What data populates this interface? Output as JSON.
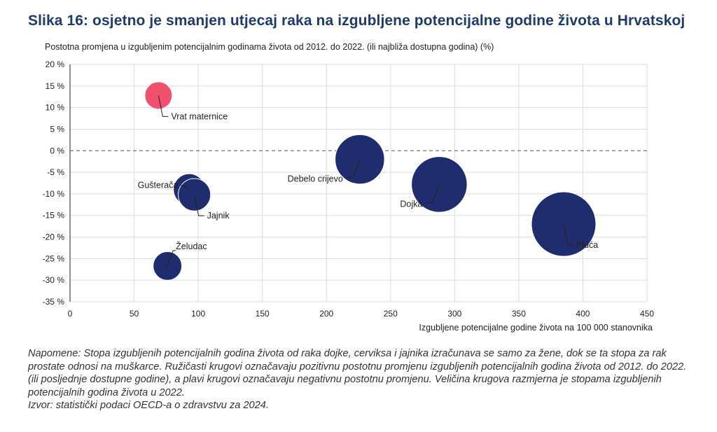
{
  "header": {
    "title": "Slika 16: osjetno je smanjen utjecaj raka na izgubljene potencijalne godine života u Hrvatskoj",
    "subtitle": "Postotna promjena u izgubljenim potencijalnim godinama života od 2012. do 2022. (ili najbliža dostupna godina) (%)"
  },
  "chart_data": {
    "type": "scatter",
    "subtype": "bubble",
    "xlabel": "Izgubljene potencijalne godine života na 100 000 stanovnika",
    "ylabel": "Postotna promjena u izgubljenim potencijalnim godinama života od 2012. do 2022. (ili najbliža dostupna godina) (%)",
    "xlim": [
      0,
      450
    ],
    "ylim": [
      -35,
      20
    ],
    "x_ticks": [
      0,
      50,
      100,
      150,
      200,
      250,
      300,
      350,
      400,
      450
    ],
    "y_ticks": [
      20,
      15,
      10,
      5,
      0,
      -5,
      -10,
      -15,
      -20,
      -25,
      -30,
      -35
    ],
    "x_tick_labels": [
      "0",
      "50",
      "100",
      "150",
      "200",
      "250",
      "300",
      "350",
      "400",
      "450"
    ],
    "y_tick_labels": [
      "20 %",
      "15 %",
      "10 %",
      "5 %",
      "0 %",
      "-5 %",
      "-10 %",
      "-15 %",
      "-20 %",
      "-25 %",
      "-30 %",
      "-35 %"
    ],
    "grid": "vertical and horizontal",
    "reference_line_y": 0,
    "colors": {
      "positive": "#f0506e",
      "negative": "#1f2d6e"
    },
    "points": [
      {
        "label": "Vrat maternice",
        "x": 69,
        "y": 12.8,
        "size": 69,
        "sign": "positive",
        "label_pos": "below-right"
      },
      {
        "label": "Gušterača",
        "x": 93,
        "y": -9,
        "size": 93,
        "sign": "negative",
        "label_pos": "left"
      },
      {
        "label": "Jajnik",
        "x": 97,
        "y": -10.2,
        "size": 97,
        "sign": "negative",
        "label_pos": "below-right"
      },
      {
        "label": "Želudac",
        "x": 76,
        "y": -26.7,
        "size": 76,
        "sign": "negative",
        "label_pos": "above-right"
      },
      {
        "label": "Debelo crijevo",
        "x": 226,
        "y": -2,
        "size": 226,
        "sign": "negative",
        "label_pos": "below-left"
      },
      {
        "label": "Dojka",
        "x": 288,
        "y": -7.8,
        "size": 288,
        "sign": "negative",
        "label_pos": "below-left"
      },
      {
        "label": "Pluća",
        "x": 385,
        "y": -17,
        "size": 385,
        "sign": "negative",
        "label_pos": "below-right"
      }
    ]
  },
  "notes": {
    "line1": "Napomene: Stopa izgubljenih potencijalnih godina života od raka dojke, cerviksa i jajnika izračunava se samo za žene, dok se ta stopa za rak prostate odnosi na muškarce. Ružičasti krugovi označavaju pozitivnu postotnu promjenu izgubljenih potencijalnih godina života od 2012. do 2022. (ili posljednje dostupne godine), a plavi krugovi označavaju negativnu postotnu promjenu. Veličina krugova razmjerna je stopama izgubljenih potencijalnih godina života u 2022.",
    "source": "Izvor: statistički podaci OECD-a o zdravstvu za 2024."
  }
}
